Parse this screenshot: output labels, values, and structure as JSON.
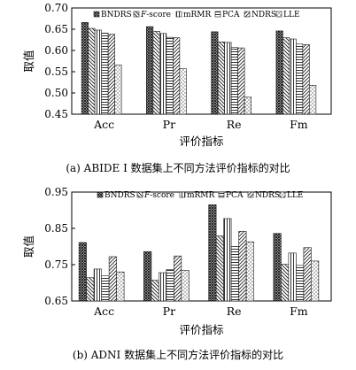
{
  "chart_data": [
    {
      "type": "bar",
      "caption": "(a)  ABIDE I 数据集上不同方法评价指标的对比",
      "xlabel": "评价指标",
      "ylabel": "取值",
      "ylim": [
        0.45,
        0.7
      ],
      "yticks": [
        "0.45",
        "0.50",
        "0.55",
        "0.60",
        "0.65",
        "0.70"
      ],
      "categories": [
        "Acc",
        "Pr",
        "Re",
        "Fm"
      ],
      "legend_position": "top",
      "grid": false,
      "series": [
        {
          "name": "BNDRS",
          "values": [
            0.666,
            0.656,
            0.644,
            0.646
          ]
        },
        {
          "name": "F-score",
          "values": [
            0.652,
            0.645,
            0.62,
            0.63
          ]
        },
        {
          "name": "mRMR",
          "values": [
            0.648,
            0.64,
            0.619,
            0.627
          ]
        },
        {
          "name": "PCA",
          "values": [
            0.641,
            0.631,
            0.607,
            0.615
          ]
        },
        {
          "name": "NDRS",
          "values": [
            0.638,
            0.63,
            0.606,
            0.614
          ]
        },
        {
          "name": "LLE",
          "values": [
            0.566,
            0.557,
            0.49,
            0.518
          ]
        }
      ]
    },
    {
      "type": "bar",
      "caption": "(b)    ADNI 数据集上不同方法评价指标的对比",
      "xlabel": "评价指标",
      "ylabel": "取值",
      "ylim": [
        0.65,
        0.95
      ],
      "yticks": [
        "0.65",
        "0.75",
        "0.85",
        "0.95"
      ],
      "categories": [
        "Acc",
        "Pr",
        "Re",
        "Fm"
      ],
      "legend_position": "top",
      "grid": false,
      "series": [
        {
          "name": "BNDRS",
          "values": [
            0.811,
            0.786,
            0.915,
            0.836
          ]
        },
        {
          "name": "F-score",
          "values": [
            0.714,
            0.707,
            0.829,
            0.751
          ]
        },
        {
          "name": "mRMR",
          "values": [
            0.738,
            0.728,
            0.877,
            0.782
          ]
        },
        {
          "name": "PCA",
          "values": [
            0.719,
            0.737,
            0.8,
            0.748
          ]
        },
        {
          "name": "NDRS",
          "values": [
            0.772,
            0.774,
            0.842,
            0.797
          ]
        },
        {
          "name": "LLE",
          "values": [
            0.73,
            0.734,
            0.813,
            0.76
          ]
        }
      ]
    }
  ],
  "series_colors": [
    "#1a1a1a",
    "#1a1a1a",
    "#1a1a1a",
    "#1a1a1a",
    "#1a1a1a",
    "#1a1a1a"
  ],
  "series_patterns": [
    "crosshatch-dense",
    "back-diagonal",
    "vertical-lines",
    "horizontal-lines",
    "forward-diagonal",
    "dots"
  ]
}
